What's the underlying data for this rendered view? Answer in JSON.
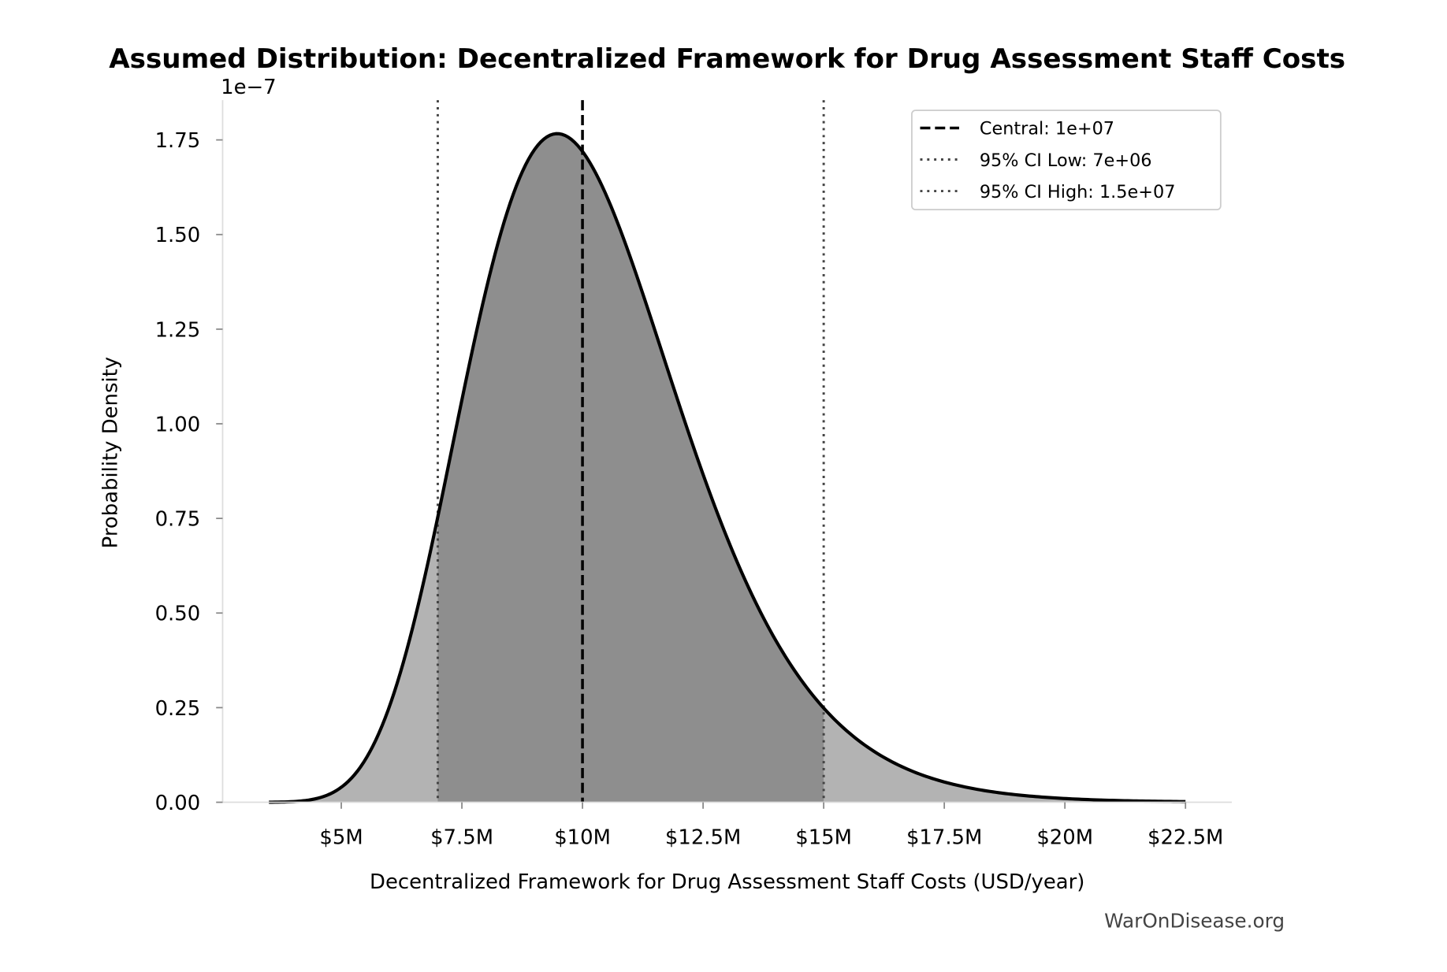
{
  "chart_data": {
    "type": "area",
    "title": "Assumed Distribution: Decentralized Framework for Drug Assessment Staff Costs",
    "xlabel": "Decentralized Framework for Drug Assessment Staff Costs (USD/year)",
    "ylabel": "Probability Density",
    "y_offset_label": "1e−7",
    "xlim": [
      2540000,
      23460000
    ],
    "ylim": [
      0,
      1.855e-07
    ],
    "x_ticks": [
      5000000,
      7500000,
      10000000,
      12500000,
      15000000,
      17500000,
      20000000,
      22500000
    ],
    "x_tick_labels": [
      "$5M",
      "$7.5M",
      "$10M",
      "$12.5M",
      "$15M",
      "$17.5M",
      "$20M",
      "$22.5M"
    ],
    "y_ticks": [
      0,
      2.5e-08,
      5e-08,
      7.5e-08,
      1e-07,
      1.25e-07,
      1.5e-07,
      1.75e-07
    ],
    "y_tick_labels": [
      "0.00",
      "0.25",
      "0.50",
      "0.75",
      "1.00",
      "1.25",
      "1.50",
      "1.75"
    ],
    "distribution": {
      "type": "lognormal",
      "median": 10000000,
      "sigma": 0.232,
      "x_range": [
        3500000,
        22500000
      ]
    },
    "peak": {
      "x": 9450000,
      "y": 1.77e-07
    },
    "central": 10000000,
    "ci_low": 7000000,
    "ci_high": 15000000,
    "grid": false,
    "legend_position": "top-right",
    "legend": [
      "Central: 1e+07",
      "95% CI Low: 7e+06",
      "95% CI High: 1.5e+07"
    ],
    "colors": {
      "outer_fill": "#b3b3b3",
      "ci_fill": "#8e8e8e",
      "curve": "#000000",
      "ci_lines": "#444444"
    }
  },
  "watermark": "WarOnDisease.org"
}
